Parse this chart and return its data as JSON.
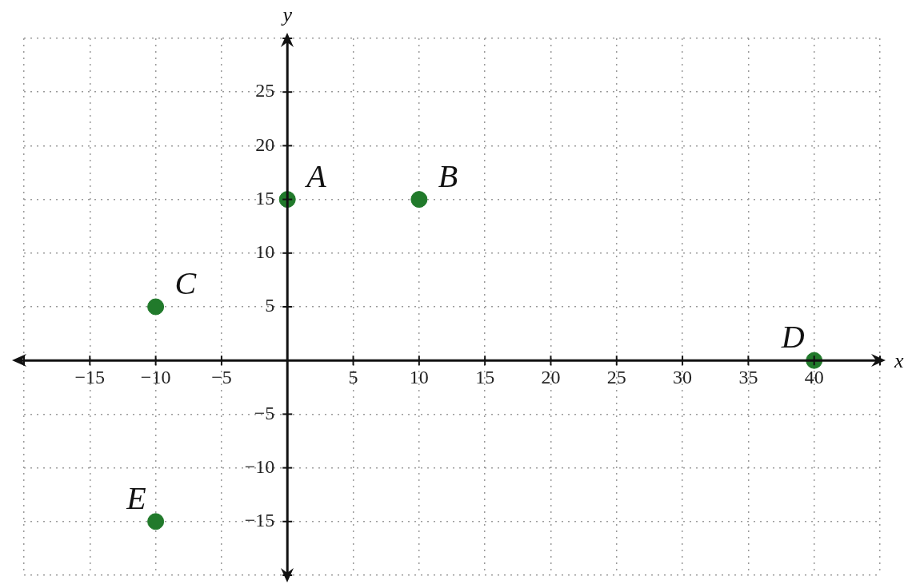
{
  "chart_data": {
    "type": "scatter",
    "xlabel": "x",
    "ylabel": "y",
    "series": [
      {
        "color": "#217a2b",
        "x": [
          0,
          10,
          -10,
          40,
          -10
        ],
        "values": [
          15,
          15,
          5,
          0,
          -15
        ]
      }
    ],
    "marker": "circle",
    "xlim": [
      -20,
      45
    ],
    "xticks": [
      {
        "value": -20,
        "label": null
      },
      {
        "value": -15,
        "label": "−15"
      },
      {
        "value": -10,
        "label": "−10"
      },
      {
        "value": -5,
        "label": "−5"
      },
      {
        "value": 0,
        "label": null
      },
      5,
      10,
      15,
      20,
      25,
      30,
      35,
      40,
      {
        "value": 45,
        "label": null
      }
    ],
    "ylim": [
      -20,
      30
    ],
    "yticks": [
      {
        "value": -20,
        "label": null
      },
      {
        "value": -15,
        "label": "−15"
      },
      {
        "value": -10,
        "label": "−10"
      },
      {
        "value": -5,
        "label": "−5"
      },
      {
        "value": 0,
        "label": null
      },
      5,
      10,
      15,
      20,
      25,
      {
        "value": 30,
        "label": null
      }
    ],
    "grid": true,
    "annotations": [
      {
        "text": "A",
        "x": 0,
        "y": 15
      },
      {
        "text": "B",
        "x": 10,
        "y": 15
      },
      {
        "text": "C",
        "x": -10,
        "y": 5
      },
      {
        "text": "D",
        "x": 40,
        "y": 0
      },
      {
        "text": "E",
        "x": -10,
        "y": -15
      }
    ]
  }
}
